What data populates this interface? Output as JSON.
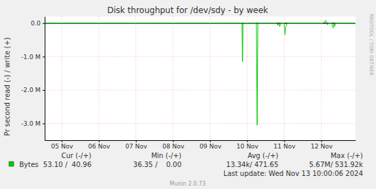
{
  "chart_data": {
    "type": "line",
    "title": "Disk throughput for /dev/sdy - by week",
    "y_label": "Pr second read (-) / write (+)",
    "x": [
      5.04,
      6,
      7,
      8,
      9,
      10,
      10.36,
      10.375,
      10.39,
      10.75,
      10.77,
      10.79,
      11.3,
      11.33,
      11.35,
      11.38,
      11.4,
      11.5,
      11.52,
      11.54,
      11.56,
      11.58,
      12.55,
      12.6,
      12.62,
      12.64,
      12.67,
      12.69,
      12.78,
      12.8,
      12.82,
      12.84,
      12.86,
      12.88,
      13,
      13.42
    ],
    "series": [
      {
        "name": "Bytes",
        "color": "#00cc00",
        "values": [
          0,
          0,
          0,
          0,
          0,
          0,
          0,
          -1150000,
          0,
          0,
          -3050000,
          0,
          0,
          -60000,
          0,
          -100000,
          0,
          0,
          -350000,
          -120000,
          -80000,
          0,
          0,
          60000,
          90000,
          0,
          -50000,
          0,
          0,
          -80000,
          -150000,
          0,
          -100000,
          0,
          0,
          0
        ],
        "stats": [
          "53.10 /  40.96",
          "36.35 /    0.00",
          "13.34k/ 471.65",
          "5.67M/ 531.92k"
        ]
      }
    ],
    "stats_headers": [
      "Cur (-/+)",
      "Min (-/+)",
      "Avg (-/+)",
      "Max (-/+)"
    ],
    "xlim": [
      5.04,
      13.42
    ],
    "ylim": [
      -3500000,
      200000
    ],
    "xticks": [
      {
        "value": 5.5,
        "label": "05 Nov"
      },
      {
        "value": 6.5,
        "label": "06 Nov"
      },
      {
        "value": 7.5,
        "label": "07 Nov"
      },
      {
        "value": 8.5,
        "label": "08 Nov"
      },
      {
        "value": 9.5,
        "label": "09 Nov"
      },
      {
        "value": 10.5,
        "label": "10 Nov"
      },
      {
        "value": 11.5,
        "label": "11 Nov"
      },
      {
        "value": 12.5,
        "label": "12 Nov"
      }
    ],
    "yticks": [
      {
        "value": 0,
        "label": "0.0"
      },
      {
        "value": -1000000,
        "label": "-1.0 M"
      },
      {
        "value": -2000000,
        "label": "-2.0 M"
      },
      {
        "value": -3000000,
        "label": "-3.0 M"
      }
    ],
    "grid": true,
    "last_update": "Last update: Wed Nov 13 10:00:06 2024",
    "footer": "Munin 2.0.73",
    "watermark": "RRDTOOL / TOBI OETIKER"
  }
}
